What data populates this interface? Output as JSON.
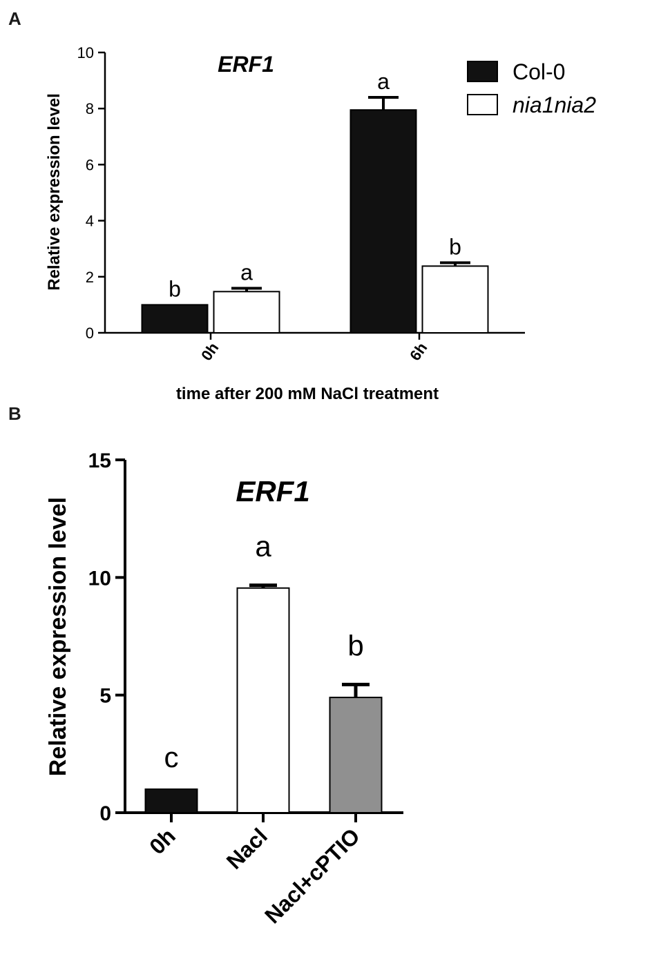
{
  "chart_data": [
    {
      "panel": "A",
      "type": "bar",
      "title": "ERF1",
      "xlabel": "time after 200 mM NaCl treatment",
      "ylabel": "Relative expression level",
      "ylim": [
        0,
        10
      ],
      "yticks": [
        "0",
        "2",
        "4",
        "6",
        "8",
        "10"
      ],
      "categories": [
        "0h",
        "6h"
      ],
      "series": [
        {
          "name": "Col-0",
          "color": "#111111",
          "values": [
            1.0,
            7.95
          ],
          "errors": [
            0,
            0.45
          ],
          "sig": [
            "b",
            "a"
          ]
        },
        {
          "name": "nia1nia2",
          "color": "#ffffff",
          "values": [
            1.47,
            2.38
          ],
          "errors": [
            0.12,
            0.12
          ],
          "sig": [
            "a",
            "b"
          ]
        }
      ],
      "legend_position": "top-right",
      "grid": false
    },
    {
      "panel": "B",
      "type": "bar",
      "title": "ERF1",
      "xlabel": "",
      "ylabel": "Relative expression level",
      "ylim": [
        0,
        15
      ],
      "yticks": [
        "0",
        "5",
        "10",
        "15"
      ],
      "categories": [
        "0h",
        "Nacl",
        "Nacl+cPTIO"
      ],
      "values": [
        1.0,
        9.55,
        4.9
      ],
      "errors": [
        0,
        0.12,
        0.55
      ],
      "colors": [
        "#111111",
        "#ffffff",
        "#909090"
      ],
      "sig": [
        "c",
        "a",
        "b"
      ],
      "grid": false
    }
  ]
}
